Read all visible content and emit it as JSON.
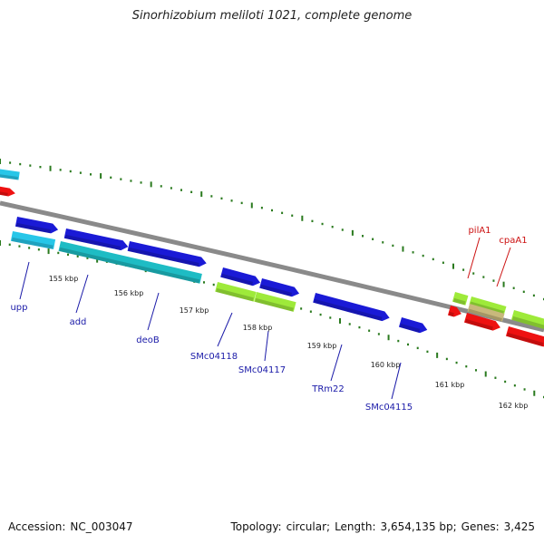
{
  "title": "Sinorhizobium meliloti 1021, complete genome",
  "footer": {
    "accession_label": "Accession:",
    "accession": "NC_003047",
    "topology_label": "Topology:",
    "topology": "circular;",
    "length_label": "Length:",
    "length": "3,654,135 bp;",
    "genes_label": "Genes:",
    "genes": "3,425"
  },
  "colors": {
    "backbone": "#8a8a8a",
    "tick": "#2a7a1e",
    "gene_forward": "#1a1ad6",
    "gene_cyan": "#27c6e8",
    "gene_teal": "#1ebcc4",
    "gene_lime": "#9eea3a",
    "gene_tan": "#c8b87c",
    "gene_red": "#ee1111",
    "label_blue": "#1a1aa8",
    "label_red": "#cc1111",
    "scale_text": "#222222"
  },
  "scale": {
    "unit": "kbp",
    "labels": [
      "155 kbp",
      "156 kbp",
      "157 kbp",
      "158 kbp",
      "159 kbp",
      "160 kbp",
      "161 kbp",
      "162 kbp"
    ]
  },
  "genes": [
    {
      "name": "upp",
      "color": "label_blue"
    },
    {
      "name": "add",
      "color": "label_blue"
    },
    {
      "name": "deoB",
      "color": "label_blue"
    },
    {
      "name": "SMc04118",
      "color": "label_blue"
    },
    {
      "name": "SMc04117",
      "color": "label_blue"
    },
    {
      "name": "TRm22",
      "color": "label_blue"
    },
    {
      "name": "SMc04115",
      "color": "label_blue"
    },
    {
      "name": "pilA1",
      "color": "label_red"
    },
    {
      "name": "cpaA1",
      "color": "label_red"
    }
  ]
}
